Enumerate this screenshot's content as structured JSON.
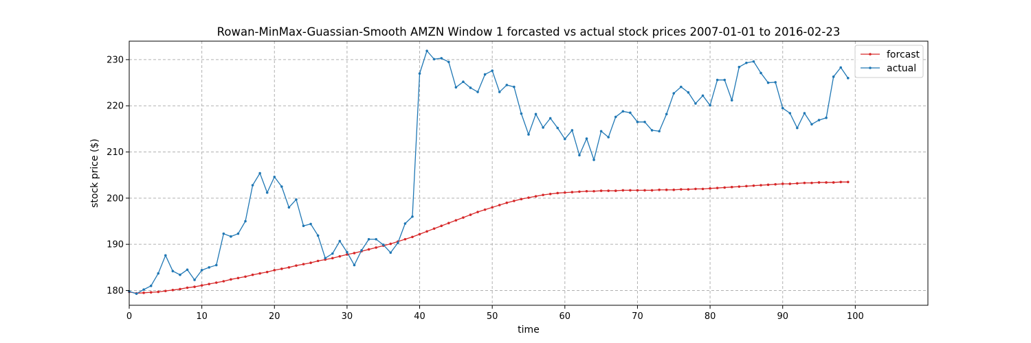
{
  "chart_data": {
    "type": "line",
    "title": "Rowan-MinMax-Guassian-Smooth AMZN Window 1 forcasted vs actual stock prices 2007-01-01 to 2016-02-23",
    "xlabel": "time",
    "ylabel": "stock price ($)",
    "xlim": [
      0,
      110
    ],
    "ylim": [
      176.8,
      234.0
    ],
    "xticks": [
      0,
      10,
      20,
      30,
      40,
      50,
      60,
      70,
      80,
      90,
      100
    ],
    "yticks": [
      180,
      190,
      200,
      210,
      220,
      230
    ],
    "grid": true,
    "legend_position": "top-right",
    "series": [
      {
        "name": "forcast",
        "color": "#d62728",
        "values": [
          179.7,
          179.4,
          179.5,
          179.6,
          179.7,
          179.9,
          180.1,
          180.3,
          180.6,
          180.8,
          181.1,
          181.4,
          181.7,
          182.0,
          182.4,
          182.7,
          183.0,
          183.4,
          183.7,
          184.0,
          184.4,
          184.7,
          185.0,
          185.4,
          185.7,
          186.0,
          186.4,
          186.7,
          187.0,
          187.4,
          187.8,
          188.1,
          188.5,
          188.9,
          189.3,
          189.7,
          190.1,
          190.6,
          191.1,
          191.6,
          192.2,
          192.8,
          193.4,
          194.0,
          194.6,
          195.2,
          195.8,
          196.4,
          197.0,
          197.5,
          198.0,
          198.5,
          199.0,
          199.4,
          199.8,
          200.1,
          200.4,
          200.7,
          200.9,
          201.1,
          201.2,
          201.3,
          201.4,
          201.5,
          201.5,
          201.6,
          201.6,
          201.6,
          201.7,
          201.7,
          201.7,
          201.7,
          201.7,
          201.8,
          201.8,
          201.8,
          201.9,
          201.9,
          202.0,
          202.0,
          202.1,
          202.2,
          202.3,
          202.4,
          202.5,
          202.6,
          202.7,
          202.8,
          202.9,
          203.0,
          203.1,
          203.1,
          203.2,
          203.3,
          203.3,
          203.4,
          203.4,
          203.4,
          203.5,
          203.5
        ]
      },
      {
        "name": "actual",
        "color": "#1f77b4",
        "values": [
          179.8,
          179.3,
          180.2,
          181.0,
          183.7,
          187.6,
          184.2,
          183.4,
          184.5,
          182.3,
          184.4,
          185.0,
          185.5,
          192.3,
          191.7,
          192.3,
          195.0,
          202.8,
          205.4,
          201.2,
          204.6,
          202.5,
          198.0,
          199.7,
          194.0,
          194.4,
          191.9,
          187.0,
          188.0,
          190.7,
          188.3,
          185.5,
          188.7,
          191.1,
          191.1,
          189.9,
          188.2,
          190.3,
          194.5,
          196.0,
          227.0,
          231.9,
          230.1,
          230.3,
          229.5,
          224.0,
          225.2,
          223.9,
          223.0,
          226.8,
          227.6,
          223.0,
          224.5,
          224.1,
          218.3,
          213.8,
          218.2,
          215.3,
          217.3,
          215.2,
          212.8,
          214.7,
          209.3,
          212.9,
          208.3,
          214.5,
          213.2,
          217.6,
          218.8,
          218.5,
          216.5,
          216.5,
          214.7,
          214.5,
          218.2,
          222.7,
          224.1,
          222.9,
          220.5,
          222.2,
          220.1,
          225.6,
          225.6,
          221.2,
          228.4,
          229.3,
          229.6,
          227.1,
          225.0,
          225.1,
          219.5,
          218.4,
          215.2,
          218.4,
          216.0,
          216.9,
          217.4,
          226.3,
          228.3,
          226.0
        ]
      }
    ]
  }
}
